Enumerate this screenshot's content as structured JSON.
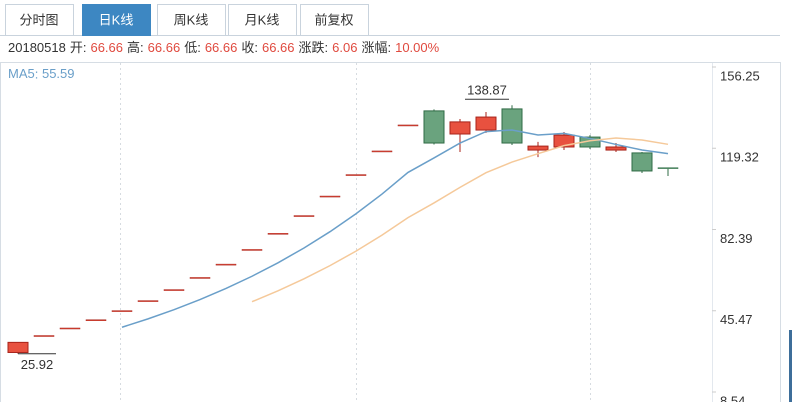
{
  "tabs": [
    "分时图",
    "日K线",
    "周K线",
    "月K线",
    "前复权"
  ],
  "active_tab": 1,
  "info": {
    "date": "20180518",
    "items": [
      {
        "label": "开:",
        "value": 66.66
      },
      {
        "label": "高:",
        "value": 66.66
      },
      {
        "label": "低:",
        "value": 66.66
      },
      {
        "label": "收:",
        "value": 66.66
      },
      {
        "label": "涨跌:",
        "value": 6.06
      },
      {
        "label": "涨幅:",
        "value": {
          "value": 10,
          "label": "10.00%"
        }
      }
    ]
  },
  "chart_data": {
    "type": "candlestick",
    "up_color": "#e8513f",
    "up_border": "#a8231a",
    "down_color": "#6aa37e",
    "down_border": "#2f6b45",
    "open": [
      26.5,
      34.21,
      37.63,
      41.39,
      45.53,
      50.08,
      55.09,
      60.6,
      66.66,
      73.33,
      80.66,
      88.73,
      97.6,
      107.36,
      118.1,
      129.91,
      136.3,
      125.8,
      127.6,
      137.2,
      118.5,
      119.9,
      124.4,
      118.5,
      117.2,
      110.5
    ],
    "high": [
      31.1,
      34.21,
      37.63,
      41.39,
      45.53,
      50.08,
      55.09,
      60.6,
      66.66,
      73.33,
      80.66,
      88.73,
      97.6,
      107.36,
      118.1,
      129.91,
      137.0,
      132.6,
      135.8,
      138.87,
      122.2,
      126.7,
      125.3,
      121.7,
      117.6,
      110.5
    ],
    "low": [
      25.92,
      34.21,
      37.63,
      41.39,
      45.53,
      50.08,
      55.09,
      60.6,
      66.66,
      73.33,
      80.66,
      88.73,
      97.6,
      107.36,
      118.1,
      129.91,
      121.0,
      117.6,
      126.3,
      120.8,
      115.3,
      118.5,
      119.0,
      117.6,
      108.1,
      106.7
    ],
    "close": [
      31.1,
      34.21,
      37.63,
      41.39,
      45.53,
      50.08,
      55.09,
      60.6,
      66.66,
      73.33,
      80.66,
      88.73,
      97.6,
      107.36,
      118.1,
      129.91,
      121.7,
      131.3,
      133.5,
      121.7,
      120.3,
      125.3,
      119.9,
      119.9,
      109.0,
      110.3
    ],
    "ma": [
      {
        "name": "MA5",
        "color": "#6a9fc9",
        "value": 55.59,
        "values": [
          null,
          null,
          null,
          null,
          37.97,
          41.77,
          45.94,
          50.54,
          55.59,
          61.15,
          67.27,
          74.0,
          81.4,
          89.54,
          98.49,
          108.34,
          114.93,
          121.67,
          126.9,
          127.62,
          125.34,
          126.06,
          123.78,
          121.06,
          118.52,
          116.88
        ]
      },
      {
        "color": "#f5c99a",
        "values": [
          null,
          null,
          null,
          null,
          null,
          null,
          null,
          null,
          null,
          49.56,
          54.52,
          59.97,
          65.97,
          72.57,
          79.82,
          87.81,
          94.47,
          101.54,
          108.22,
          113.06,
          116.84,
          120.5,
          122.73,
          123.98,
          123.07,
          121.11
        ]
      }
    ],
    "ylim": [
      8.54,
      156.25
    ],
    "yticks": [
      156.25,
      119.32,
      82.39,
      45.47,
      8.54
    ]
  }
}
